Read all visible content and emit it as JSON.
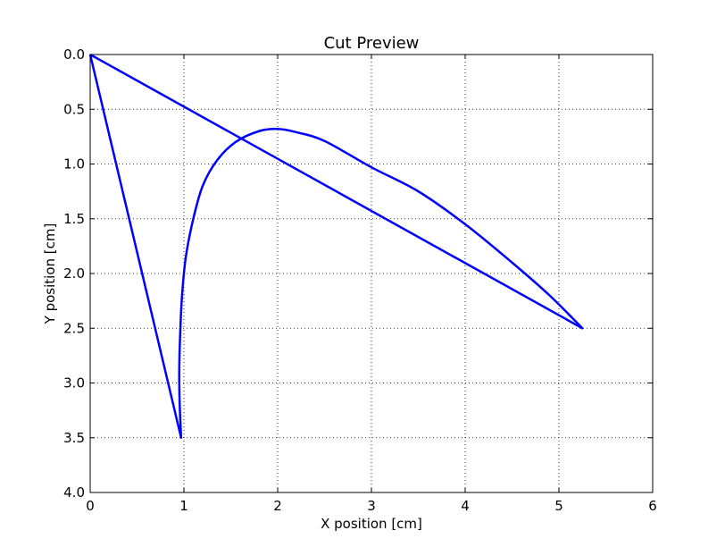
{
  "chart_data": {
    "type": "line",
    "title": "Cut Preview",
    "xlabel": "X position [cm]",
    "ylabel": "Y position [cm]",
    "xlim": [
      0,
      6
    ],
    "ylim": [
      0,
      4
    ],
    "y_inverted": true,
    "grid": true,
    "x_ticks": [
      "0",
      "1",
      "2",
      "3",
      "4",
      "5",
      "6"
    ],
    "y_ticks": [
      "0.0",
      "0.5",
      "1.0",
      "1.5",
      "2.0",
      "2.5",
      "3.0",
      "3.5",
      "4.0"
    ],
    "series_color": "#0000ff",
    "series": [
      {
        "x": [
          0.0,
          5.25,
          4.9,
          4.5,
          4.0,
          3.5,
          3.0,
          2.5,
          2.2,
          2.0,
          1.8,
          1.55,
          1.35,
          1.2,
          1.1,
          1.02,
          0.98,
          0.96,
          0.95,
          0.955,
          0.97,
          0.0
        ],
        "y": [
          0.0,
          2.5,
          2.2,
          1.9,
          1.55,
          1.25,
          1.03,
          0.79,
          0.71,
          0.68,
          0.7,
          0.8,
          0.97,
          1.2,
          1.5,
          1.85,
          2.2,
          2.55,
          2.9,
          3.2,
          3.5,
          0.0
        ]
      }
    ]
  }
}
